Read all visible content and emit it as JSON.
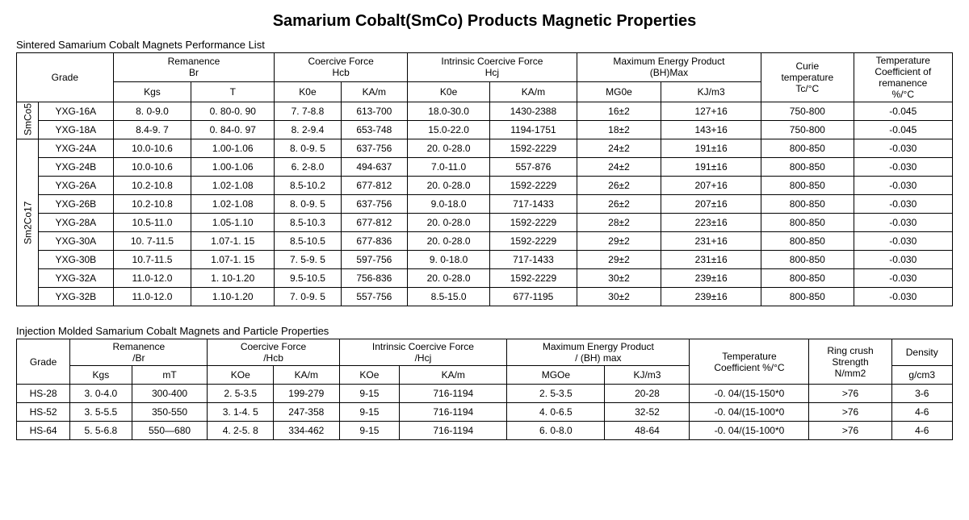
{
  "title": "Samarium Cobalt(SmCo) Products Magnetic Properties",
  "section1_title": "Sintered Samarium Cobalt Magnets Performance List",
  "section2_title": "Injection Molded Samarium Cobalt Magnets and Particle Properties",
  "t1": {
    "headers": {
      "grade": "Grade",
      "remanence": "Remanence\nBr",
      "remanence_kgs": "Kgs",
      "remanence_t": "T",
      "coercive": "Coercive Force\nHcb",
      "coercive_koe": "K0e",
      "coercive_kam": "KA/m",
      "intrinsic": "Intrinsic Coercive Force\nHcj",
      "intrinsic_koe": "K0e",
      "intrinsic_kam": "KA/m",
      "bhmax": "Maximum Energy Product\n(BH)Max",
      "bhmax_mgoe": "MG0e",
      "bhmax_kjm3": "KJ/m3",
      "curie": "Curie\ntemperature\nTc/°C",
      "tempco": "Temperature\nCoefficient of\nremanence\n%/°C"
    },
    "groups": [
      {
        "label": "SmCo5",
        "rows": [
          [
            "YXG-16A",
            "8. 0-9.0",
            "0. 80-0. 90",
            "7. 7-8.8",
            "613-700",
            "18.0-30.0",
            "1430-2388",
            "16±2",
            "127+16",
            "750-800",
            "-0.045"
          ],
          [
            "YXG-18A",
            "8.4-9. 7",
            "0. 84-0. 97",
            "8. 2-9.4",
            "653-748",
            "15.0-22.0",
            "1194-1751",
            "18±2",
            "143+16",
            "750-800",
            "-0.045"
          ]
        ]
      },
      {
        "label": "Sm2Co17",
        "rows": [
          [
            "YXG-24A",
            "10.0-10.6",
            "1.00-1.06",
            "8. 0-9. 5",
            "637-756",
            "20. 0-28.0",
            "1592-2229",
            "24±2",
            "191±16",
            "800-850",
            "-0.030"
          ],
          [
            "YXG-24B",
            "10.0-10.6",
            "1.00-1.06",
            "6. 2-8.0",
            "494-637",
            "7.0-11.0",
            "557-876",
            "24±2",
            "191±16",
            "800-850",
            "-0.030"
          ],
          [
            "YXG-26A",
            "10.2-10.8",
            "1.02-1.08",
            "8.5-10.2",
            "677-812",
            "20. 0-28.0",
            "1592-2229",
            "26±2",
            "207+16",
            "800-850",
            "-0.030"
          ],
          [
            "YXG-26B",
            "10.2-10.8",
            "1.02-1.08",
            "8. 0-9. 5",
            "637-756",
            "9.0-18.0",
            "717-1433",
            "26±2",
            "207±16",
            "800-850",
            "-0.030"
          ],
          [
            "YXG-28A",
            "10.5-11.0",
            "1.05-1.10",
            "8.5-10.3",
            "677-812",
            "20. 0-28.0",
            "1592-2229",
            "28±2",
            "223±16",
            "800-850",
            "-0.030"
          ],
          [
            "YXG-30A",
            "10. 7-11.5",
            "1.07-1. 15",
            "8.5-10.5",
            "677-836",
            "20. 0-28.0",
            "1592-2229",
            "29±2",
            "231+16",
            "800-850",
            "-0.030"
          ],
          [
            "YXG-30B",
            "10.7-11.5",
            "1.07-1. 15",
            "7. 5-9. 5",
            "597-756",
            "9. 0-18.0",
            "717-1433",
            "29±2",
            "231±16",
            "800-850",
            "-0.030"
          ],
          [
            "YXG-32A",
            "11.0-12.0",
            "1. 10-1.20",
            "9.5-10.5",
            "756-836",
            "20. 0-28.0",
            "1592-2229",
            "30±2",
            "239±16",
            "800-850",
            "-0.030"
          ],
          [
            "YXG-32B",
            "11.0-12.0",
            "1.10-1.20",
            "7. 0-9. 5",
            "557-756",
            "8.5-15.0",
            "677-1195",
            "30±2",
            "239±16",
            "800-850",
            "-0.030"
          ]
        ]
      }
    ]
  },
  "t2": {
    "headers": {
      "grade": "Grade",
      "remanence": "Remanence\n/Br",
      "remanence_kgs": "Kgs",
      "remanence_mt": "mT",
      "coercive": "Coercive Force\n/Hcb",
      "coercive_koe": "KOe",
      "coercive_kam": "KA/m",
      "intrinsic": "Intrinsic Coercive Force\n/Hcj",
      "intrinsic_koe": "KOe",
      "intrinsic_kam": "KA/m",
      "bhmax": "Maximum Energy Product\n/ (BH) max",
      "bhmax_mgoe": "MGOe",
      "bhmax_kjm3": "KJ/m3",
      "tempco": "Temperature\nCoefficient %/°C",
      "ring": "Ring crush\nStrength\nN/mm2",
      "density": "Density",
      "density_unit": "g/cm3"
    },
    "rows": [
      [
        "HS-28",
        "3. 0-4.0",
        "300-400",
        "2. 5-3.5",
        "199-279",
        "9-15",
        "716-1194",
        "2. 5-3.5",
        "20-28",
        "-0. 04/(15-150*0",
        ">76",
        "3-6"
      ],
      [
        "HS-52",
        "3. 5-5.5",
        "350-550",
        "3. 1-4. 5",
        "247-358",
        "9-15",
        "716-1194",
        "4. 0-6.5",
        "32-52",
        "-0. 04/(15-100*0",
        ">76",
        "4-6"
      ],
      [
        "HS-64",
        "5. 5-6.8",
        "550—680",
        "4. 2-5. 8",
        "334-462",
        "9-15",
        "716-1194",
        "6. 0-8.0",
        "48-64",
        "-0. 04/(15-100*0",
        ">76",
        "4-6"
      ]
    ]
  }
}
